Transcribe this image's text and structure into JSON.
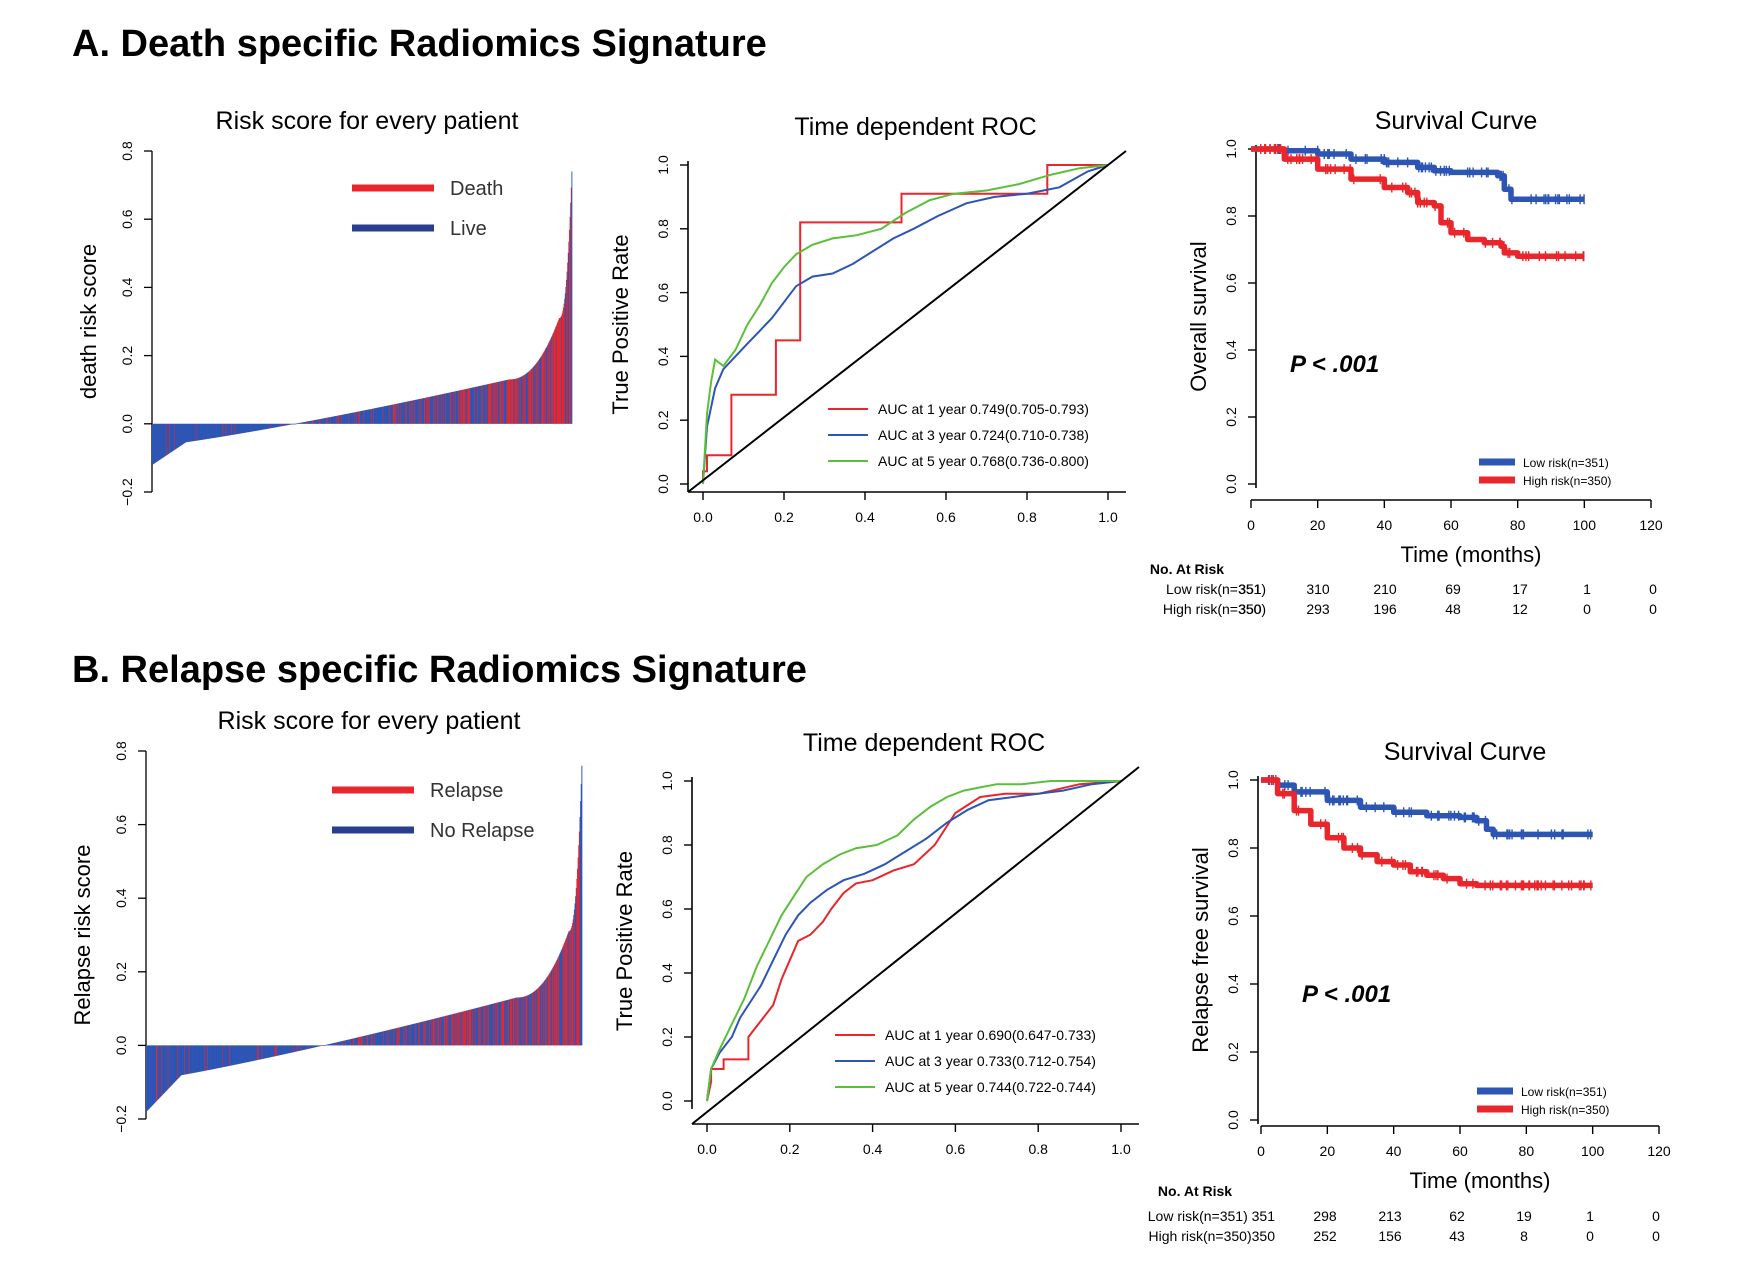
{
  "colors": {
    "red": "#e8262b",
    "blue": "#2d55b4",
    "green": "#5cbf3a",
    "black": "#000000"
  },
  "chart_data": [
    {
      "type": "bar",
      "section_title": "A. Death specific Radiomics Signature",
      "title": "Risk score for every patient",
      "xlabel": "",
      "ylabel": "death risk score",
      "ylim": [
        -0.2,
        0.8
      ],
      "yticks": [
        "−0.2",
        "0.0",
        "0.2",
        "0.4",
        "0.6",
        "0.8"
      ],
      "ytick_values": [
        -0.2,
        0,
        0.2,
        0.4,
        0.6,
        0.8
      ],
      "legend": [
        "Death",
        "Live"
      ],
      "legend_position": "top-right",
      "n_patients": 701,
      "min_score": -0.12,
      "max_score": 0.74
    },
    {
      "type": "line",
      "title": "Time dependent ROC",
      "xlabel": "",
      "ylabel": "True Positive Rate",
      "xlim": [
        0,
        1
      ],
      "ylim": [
        0,
        1
      ],
      "xticks": [
        "0.0",
        "0.2",
        "0.4",
        "0.6",
        "0.8",
        "1.0"
      ],
      "yticks": [
        "0.0",
        "0.2",
        "0.4",
        "0.6",
        "0.8",
        "1.0"
      ],
      "legend_position": "bottom-right",
      "series": [
        {
          "name": "AUC at 1 year  0.749(0.705-0.793)",
          "color": "red",
          "x": [
            0,
            0,
            0.01,
            0.01,
            0.07,
            0.07,
            0.18,
            0.18,
            0.24,
            0.24,
            0.49,
            0.49,
            0.58,
            0.58,
            0.85,
            0.85,
            0.96,
            1.0
          ],
          "y": [
            0,
            0.04,
            0.04,
            0.09,
            0.09,
            0.28,
            0.28,
            0.45,
            0.45,
            0.82,
            0.82,
            0.91,
            0.91,
            0.91,
            0.91,
            1.0,
            1.0,
            1.0
          ]
        },
        {
          "name": "AUC at 3 year  0.724(0.710-0.738)",
          "color": "blue",
          "x": [
            0,
            0.01,
            0.03,
            0.05,
            0.08,
            0.11,
            0.14,
            0.17,
            0.2,
            0.23,
            0.27,
            0.32,
            0.37,
            0.42,
            0.47,
            0.52,
            0.58,
            0.65,
            0.72,
            0.8,
            0.88,
            0.95,
            1.0
          ],
          "y": [
            0,
            0.18,
            0.3,
            0.36,
            0.4,
            0.44,
            0.48,
            0.52,
            0.57,
            0.62,
            0.65,
            0.66,
            0.69,
            0.73,
            0.77,
            0.8,
            0.84,
            0.88,
            0.9,
            0.91,
            0.93,
            0.98,
            1.0
          ]
        },
        {
          "name": "AUC at 5 year  0.768(0.736-0.800)",
          "color": "green",
          "x": [
            0,
            0.01,
            0.02,
            0.03,
            0.05,
            0.08,
            0.11,
            0.14,
            0.17,
            0.2,
            0.23,
            0.27,
            0.32,
            0.38,
            0.44,
            0.5,
            0.56,
            0.62,
            0.7,
            0.78,
            0.86,
            0.93,
            1.0
          ],
          "y": [
            0,
            0.22,
            0.32,
            0.39,
            0.37,
            0.42,
            0.5,
            0.56,
            0.63,
            0.68,
            0.72,
            0.75,
            0.77,
            0.78,
            0.8,
            0.85,
            0.89,
            0.91,
            0.92,
            0.94,
            0.97,
            0.99,
            1.0
          ]
        },
        {
          "name": "",
          "color": "black",
          "x": [
            0,
            1
          ],
          "y": [
            0,
            1
          ]
        }
      ]
    },
    {
      "type": "line",
      "title": "Survival Curve",
      "xlabel": "Time (months)",
      "ylabel": "Overall survival",
      "xlim": [
        0,
        120
      ],
      "ylim": [
        0,
        1
      ],
      "xticks": [
        "0",
        "20",
        "40",
        "60",
        "80",
        "100",
        "120"
      ],
      "yticks": [
        "0.0",
        "0.2",
        "0.4",
        "0.6",
        "0.8",
        "1.0"
      ],
      "annotation": "P < .001",
      "legend_position": "bottom-right",
      "series": [
        {
          "name": "Low risk(n=351)",
          "color": "blue",
          "x": [
            0,
            10,
            20,
            30,
            40,
            50,
            55,
            60,
            70,
            74,
            76,
            78,
            90,
            100
          ],
          "y": [
            1.0,
            0.995,
            0.985,
            0.97,
            0.96,
            0.945,
            0.935,
            0.93,
            0.93,
            0.92,
            0.88,
            0.85,
            0.85,
            0.85
          ]
        },
        {
          "name": "High risk(n=350)",
          "color": "red",
          "x": [
            0,
            10,
            20,
            30,
            40,
            47,
            50,
            55,
            57,
            60,
            65,
            70,
            75,
            76,
            80,
            90,
            100
          ],
          "y": [
            1.0,
            0.97,
            0.94,
            0.91,
            0.885,
            0.87,
            0.84,
            0.83,
            0.78,
            0.75,
            0.73,
            0.72,
            0.71,
            0.69,
            0.68,
            0.68,
            0.68
          ]
        }
      ],
      "at_risk": {
        "title": "No. At Risk",
        "rows": [
          {
            "label": "Low risk(n=351)",
            "values": [
              "351",
              "310",
              "210",
              "69",
              "17",
              "1",
              "0"
            ]
          },
          {
            "label": "High risk(n=350)",
            "values": [
              "350",
              "293",
              "196",
              "48",
              "12",
              "0",
              "0"
            ]
          }
        ]
      }
    },
    {
      "type": "bar",
      "section_title": "B. Relapse specific Radiomics Signature",
      "title": "Risk score for every patient",
      "xlabel": "",
      "ylabel": "Relapse risk score",
      "ylim": [
        -0.2,
        0.8
      ],
      "yticks": [
        "−0.2",
        "0.0",
        "0.2",
        "0.4",
        "0.6",
        "0.8"
      ],
      "ytick_values": [
        -0.2,
        0,
        0.2,
        0.4,
        0.6,
        0.8
      ],
      "legend": [
        "Relapse",
        "No Relapse"
      ],
      "legend_position": "top-right",
      "n_patients": 701,
      "min_score": -0.18,
      "max_score": 0.76
    },
    {
      "type": "line",
      "title": "Time dependent ROC",
      "xlabel": "",
      "ylabel": "True Positive Rate",
      "xlim": [
        0,
        1
      ],
      "ylim": [
        0,
        1
      ],
      "xticks": [
        "0.0",
        "0.2",
        "0.4",
        "0.6",
        "0.8",
        "1.0"
      ],
      "yticks": [
        "0.0",
        "0.2",
        "0.4",
        "0.6",
        "0.8",
        "1.0"
      ],
      "legend_position": "bottom-right",
      "series": [
        {
          "name": "AUC at 1 year  0.690(0.647-0.733)",
          "color": "red",
          "x": [
            0,
            0.01,
            0.01,
            0.04,
            0.04,
            0.1,
            0.1,
            0.13,
            0.16,
            0.18,
            0.2,
            0.22,
            0.25,
            0.28,
            0.3,
            0.33,
            0.36,
            0.4,
            0.45,
            0.5,
            0.55,
            0.6,
            0.66,
            0.72,
            0.8,
            0.9,
            1.0
          ],
          "y": [
            0,
            0.06,
            0.1,
            0.1,
            0.13,
            0.13,
            0.2,
            0.25,
            0.3,
            0.38,
            0.44,
            0.5,
            0.52,
            0.56,
            0.6,
            0.65,
            0.68,
            0.69,
            0.72,
            0.74,
            0.8,
            0.9,
            0.95,
            0.96,
            0.96,
            0.99,
            1.0
          ]
        },
        {
          "name": "AUC at 3 year  0.733(0.712-0.754)",
          "color": "blue",
          "x": [
            0,
            0.01,
            0.03,
            0.06,
            0.08,
            0.1,
            0.13,
            0.16,
            0.19,
            0.22,
            0.25,
            0.29,
            0.33,
            0.38,
            0.43,
            0.48,
            0.53,
            0.58,
            0.63,
            0.68,
            0.74,
            0.8,
            0.86,
            0.93,
            1.0
          ],
          "y": [
            0,
            0.1,
            0.15,
            0.2,
            0.26,
            0.3,
            0.36,
            0.44,
            0.52,
            0.58,
            0.62,
            0.66,
            0.69,
            0.71,
            0.74,
            0.78,
            0.82,
            0.87,
            0.91,
            0.94,
            0.95,
            0.96,
            0.97,
            0.99,
            1.0
          ]
        },
        {
          "name": "AUC at 5 year  0.744(0.722-0.744)",
          "color": "green",
          "x": [
            0,
            0.01,
            0.03,
            0.06,
            0.09,
            0.12,
            0.15,
            0.18,
            0.21,
            0.24,
            0.28,
            0.32,
            0.36,
            0.41,
            0.46,
            0.5,
            0.54,
            0.58,
            0.62,
            0.66,
            0.7,
            0.76,
            0.83,
            0.9,
            1.0
          ],
          "y": [
            0,
            0.1,
            0.16,
            0.24,
            0.32,
            0.42,
            0.5,
            0.58,
            0.64,
            0.7,
            0.74,
            0.77,
            0.79,
            0.8,
            0.83,
            0.88,
            0.92,
            0.95,
            0.97,
            0.98,
            0.99,
            0.99,
            1.0,
            1.0,
            1.0
          ]
        },
        {
          "name": "",
          "color": "black",
          "x": [
            0,
            1
          ],
          "y": [
            0,
            1
          ]
        }
      ]
    },
    {
      "type": "line",
      "title": "Survival Curve",
      "xlabel": "Time (months)",
      "ylabel": "Relapse free survival",
      "xlim": [
        0,
        120
      ],
      "ylim": [
        0,
        1
      ],
      "xticks": [
        "0",
        "20",
        "40",
        "60",
        "80",
        "100",
        "120"
      ],
      "yticks": [
        "0.0",
        "0.2",
        "0.4",
        "0.6",
        "0.8",
        "1.0"
      ],
      "annotation": "P < .001",
      "legend_position": "bottom-right",
      "series": [
        {
          "name": "Low risk(n=351)",
          "color": "blue",
          "x": [
            0,
            5,
            10,
            20,
            30,
            40,
            50,
            60,
            65,
            68,
            70,
            80,
            90,
            100
          ],
          "y": [
            1.0,
            0.985,
            0.965,
            0.94,
            0.92,
            0.905,
            0.895,
            0.89,
            0.88,
            0.855,
            0.84,
            0.84,
            0.84,
            0.84
          ]
        },
        {
          "name": "High risk(n=350)",
          "color": "red",
          "x": [
            0,
            5,
            10,
            15,
            20,
            25,
            30,
            35,
            40,
            45,
            50,
            55,
            60,
            65,
            70,
            80,
            90,
            100
          ],
          "y": [
            1.0,
            0.96,
            0.91,
            0.87,
            0.83,
            0.8,
            0.78,
            0.76,
            0.75,
            0.73,
            0.72,
            0.71,
            0.695,
            0.69,
            0.69,
            0.69,
            0.69,
            0.69
          ]
        }
      ],
      "at_risk": {
        "title": "No. At Risk",
        "rows": [
          {
            "label": "Low risk(n=351) 351",
            "values": [
              "298",
              "213",
              "62",
              "19",
              "1",
              "0"
            ]
          },
          {
            "label": "High risk(n=350)350",
            "values": [
              "252",
              "156",
              "43",
              "8",
              "0",
              "0"
            ]
          }
        ]
      }
    }
  ]
}
